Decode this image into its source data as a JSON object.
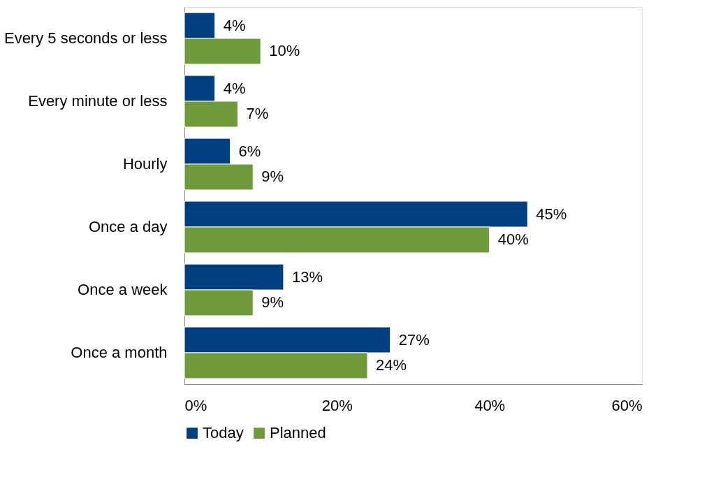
{
  "chart_data": {
    "type": "bar",
    "orientation": "horizontal",
    "categories": [
      "Every 5 seconds or less",
      "Every minute or less",
      "Hourly",
      "Once a day",
      "Once a week",
      "Once a month"
    ],
    "series": [
      {
        "name": "Today",
        "color": "#003f7f",
        "values": [
          4,
          4,
          6,
          45,
          13,
          27
        ],
        "value_labels": [
          "4%",
          "4%",
          "6%",
          "45%",
          "13%",
          "27%"
        ]
      },
      {
        "name": "Planned",
        "color": "#6f9a3c",
        "values": [
          10,
          7,
          9,
          40,
          9,
          24
        ],
        "value_labels": [
          "10%",
          "7%",
          "9%",
          "40%",
          "9%",
          "24%"
        ]
      }
    ],
    "xlim": [
      0,
      60
    ],
    "xticks": [
      {
        "value": 0,
        "label": "0%"
      },
      {
        "value": 20,
        "label": "20%"
      },
      {
        "value": 40,
        "label": "40%"
      },
      {
        "value": 60,
        "label": "60%"
      }
    ],
    "grid": false,
    "legend": "bottom"
  }
}
